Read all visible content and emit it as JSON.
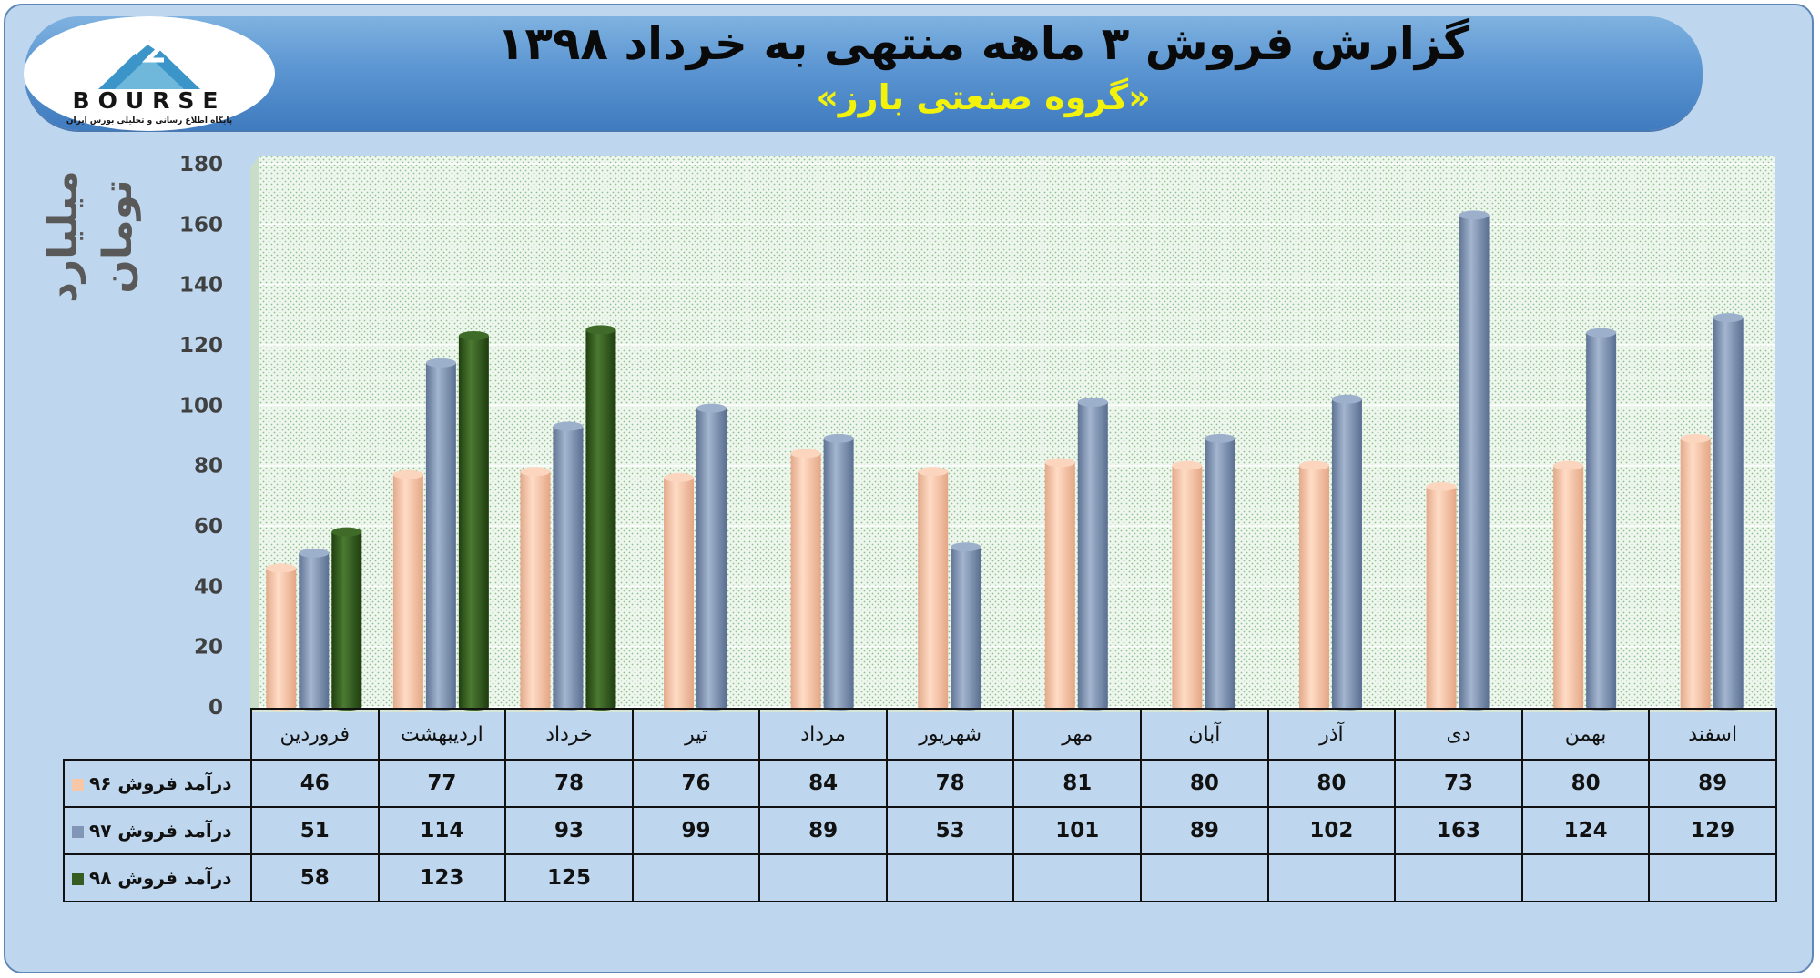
{
  "header": {
    "title": "گزارش فروش ۳ ماهه منتهی به خرداد ۱۳۹۸",
    "subtitle": "«گروه صنعتی بارز»"
  },
  "logo": {
    "wordmark": "BOURSE",
    "tagline": "پایگاه اطلاع رسانی و تحلیلی بورس ایران"
  },
  "colors": {
    "series_96": "#f8c7a8",
    "series_97": "#8196b6",
    "series_98": "#355d22",
    "frame_bg": "#bfd7ee",
    "banner": "#5c96d2",
    "title_text": "#0a0a0a",
    "subtitle_text": "#f2f20a"
  },
  "chart_data": {
    "type": "bar",
    "ylabel": "میلیارد تومان",
    "ylim": [
      0,
      180
    ],
    "yticks": [
      0,
      20,
      40,
      60,
      80,
      100,
      120,
      140,
      160,
      180
    ],
    "grid": true,
    "categories": [
      "فروردین",
      "اردیبهشت",
      "خرداد",
      "تیر",
      "مرداد",
      "شهریور",
      "مهر",
      "آبان",
      "آذر",
      "دی",
      "بهمن",
      "اسفند"
    ],
    "series": [
      {
        "name": "درآمد فروش ۹۶",
        "values": [
          46,
          77,
          78,
          76,
          84,
          78,
          81,
          80,
          80,
          73,
          80,
          89
        ]
      },
      {
        "name": "درآمد فروش ۹۷",
        "values": [
          51,
          114,
          93,
          99,
          89,
          53,
          101,
          89,
          102,
          163,
          124,
          129
        ]
      },
      {
        "name": "درآمد فروش ۹۸",
        "values": [
          58,
          123,
          125,
          null,
          null,
          null,
          null,
          null,
          null,
          null,
          null,
          null
        ]
      }
    ]
  }
}
